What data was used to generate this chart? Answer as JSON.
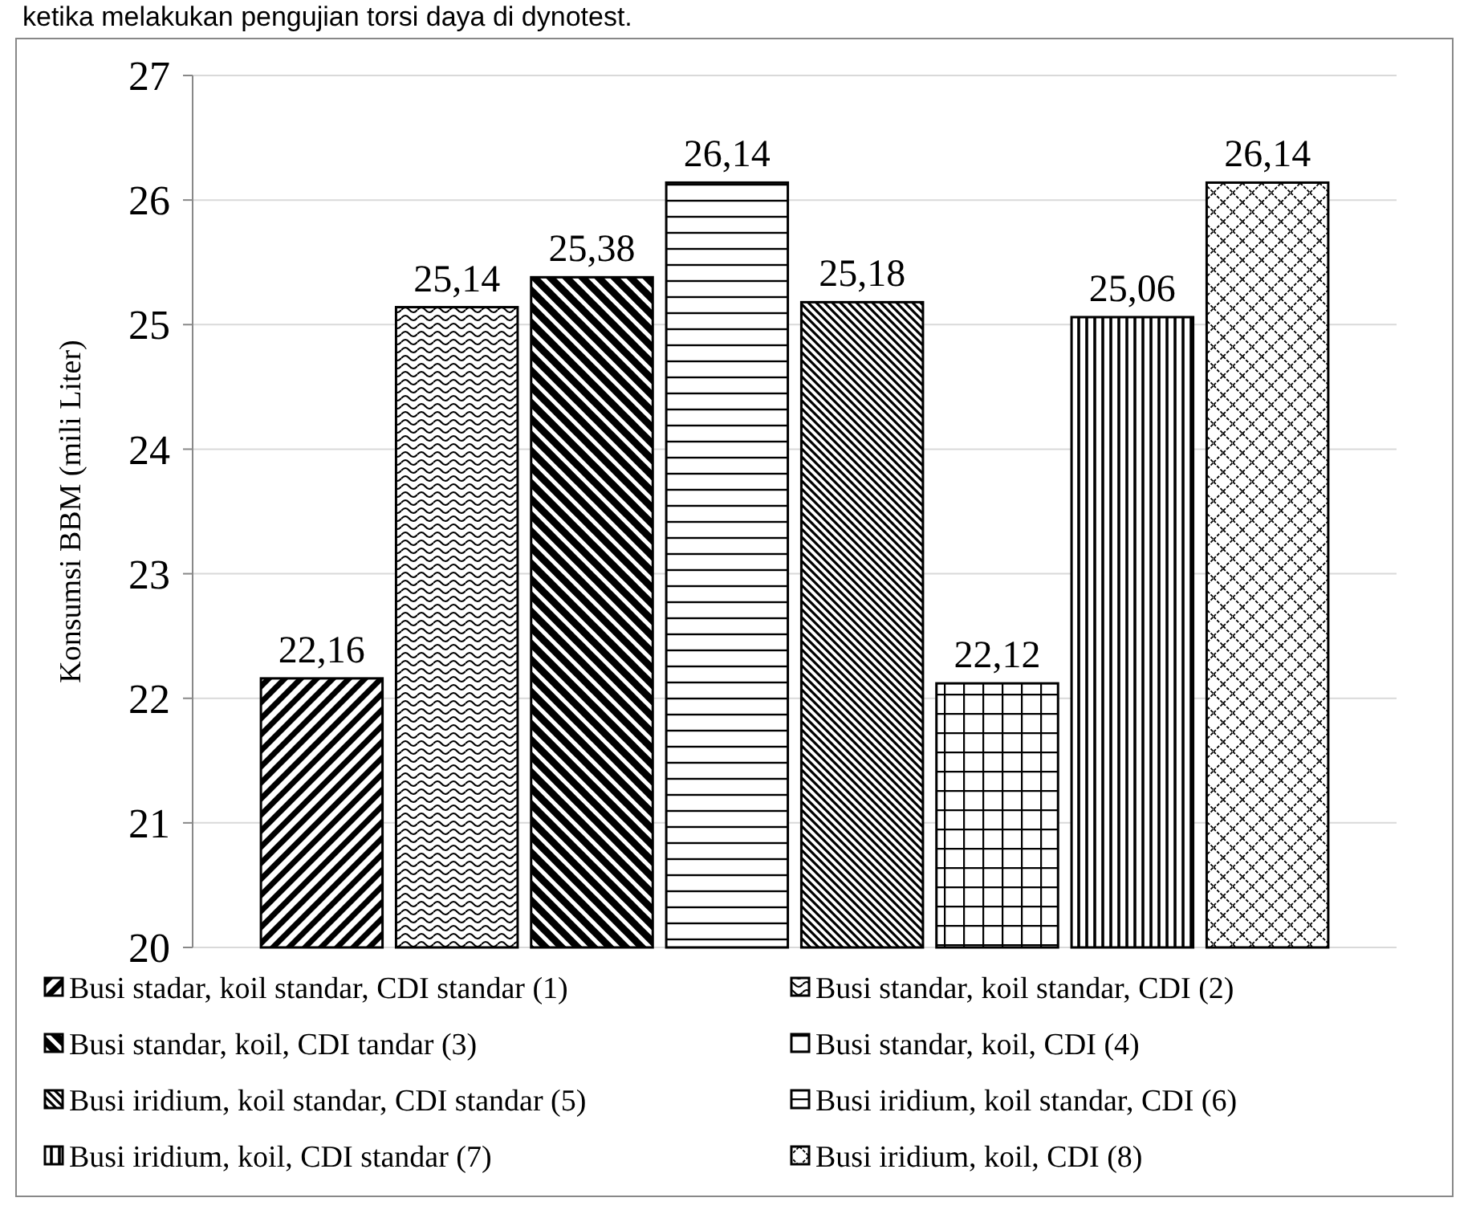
{
  "chart_data": {
    "type": "bar",
    "ylabel": "Konsumsi BBM (mili Liter)",
    "annotations": [
      "ketika melakukan pengujian torsi daya di dynotest."
    ],
    "categories": [
      null
    ],
    "series": [
      {
        "name": "Busi stadar, koil standar, CDI standar (1)",
        "color": "#000000",
        "values": [
          22.16
        ],
        "value_labels": [
          "22,16"
        ]
      },
      {
        "name": "Busi standar, koil standar, CDI (2)",
        "color": "#000000",
        "values": [
          25.14
        ],
        "value_labels": [
          "25,14"
        ]
      },
      {
        "name": "Busi standar, koil, CDI tandar (3)",
        "color": "#000000",
        "values": [
          25.38
        ],
        "value_labels": [
          "25,38"
        ]
      },
      {
        "name": "Busi standar, koil, CDI (4)",
        "color": "#000000",
        "values": [
          26.14
        ],
        "value_labels": [
          "26,14"
        ]
      },
      {
        "name": "Busi iridium, koil standar, CDI standar (5)",
        "color": "#000000",
        "values": [
          25.18
        ],
        "value_labels": [
          "25,18"
        ]
      },
      {
        "name": "Busi iridium, koil standar, CDI (6)",
        "color": "#000000",
        "values": [
          22.12
        ],
        "value_labels": [
          "22,12"
        ]
      },
      {
        "name": "Busi iridium, koil, CDI standar (7)",
        "color": "#000000",
        "values": [
          25.06
        ],
        "value_labels": [
          "25,06"
        ]
      },
      {
        "name": "Busi iridium, koil, CDI (8)",
        "color": "#000000",
        "values": [
          26.14
        ],
        "value_labels": [
          "26,14"
        ]
      }
    ],
    "ylim": [
      20,
      27
    ],
    "yticks": [
      20,
      21,
      22,
      23,
      24,
      25,
      26,
      27
    ],
    "grid": "y",
    "legend": "bottom"
  }
}
